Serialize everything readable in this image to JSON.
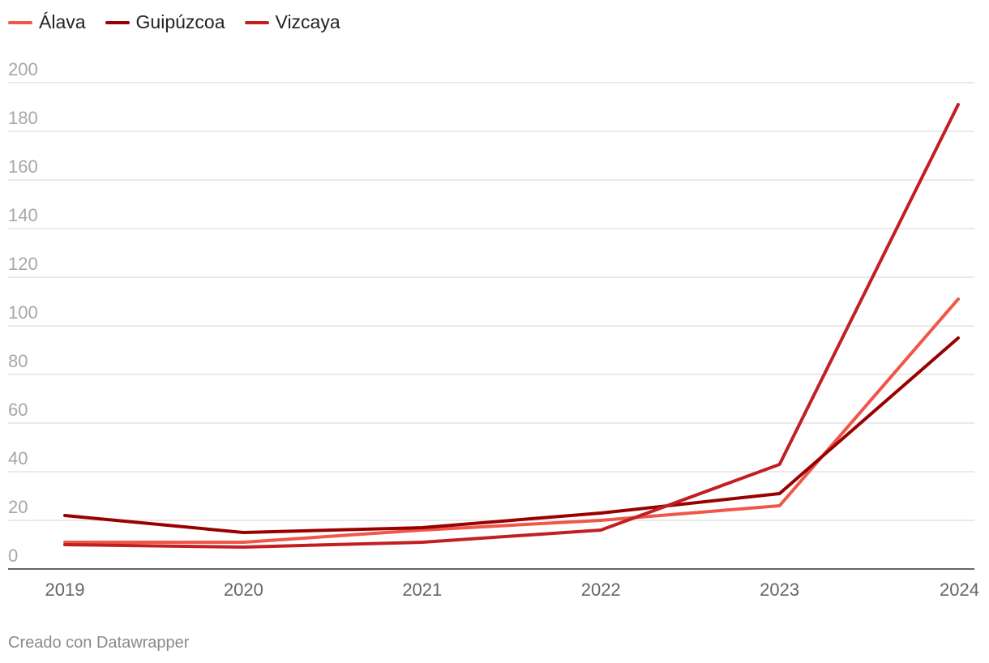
{
  "chart_data": {
    "type": "line",
    "title": "",
    "xlabel": "",
    "ylabel": "",
    "x": [
      "2019",
      "2020",
      "2021",
      "2022",
      "2023",
      "2024"
    ],
    "y_ticks": [
      "0",
      "20",
      "40",
      "60",
      "80",
      "100",
      "120",
      "140",
      "160",
      "180",
      "200"
    ],
    "ylim": [
      0,
      200
    ],
    "grid": true,
    "legend_position": "top-left",
    "series": [
      {
        "name": "Álava",
        "color": "#f0564a",
        "values": [
          11,
          11,
          16,
          20,
          26,
          111
        ]
      },
      {
        "name": "Guipúzcoa",
        "color": "#990000",
        "values": [
          22,
          15,
          17,
          23,
          31,
          95
        ]
      },
      {
        "name": "Vizcaya",
        "color": "#c21f23",
        "values": [
          10,
          9,
          11,
          16,
          43,
          191
        ]
      }
    ]
  },
  "footer": {
    "credit": "Creado con Datawrapper"
  }
}
